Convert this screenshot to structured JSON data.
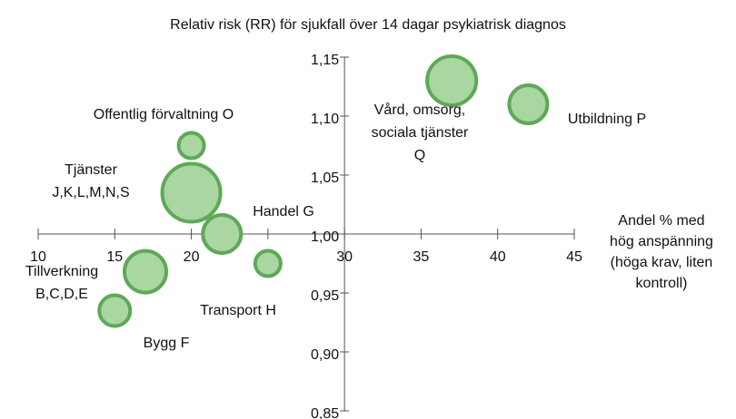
{
  "chart_data": {
    "type": "bubble",
    "title": "Relativ risk (RR) för sjukfall över 14 dagar psykiatrisk diagnos",
    "x_label": [
      "Andel % med",
      "hög anspänning",
      "(höga krav, liten",
      "kontroll)"
    ],
    "labels": [
      [
        "Offentlig förvaltning O"
      ],
      [
        "Tjänster",
        "J,K,L,M,N,S"
      ],
      [
        "Handel G"
      ],
      [
        "Transport H"
      ],
      [
        "Tillverkning",
        "B,C,D,E"
      ],
      [
        "Bygg F"
      ],
      [
        "Vård, omsorg,",
        "sociala tjänster",
        "Q"
      ],
      [
        "Utbildning P"
      ]
    ],
    "x": [
      20,
      20,
      22,
      25,
      17,
      15,
      37,
      42
    ],
    "values": [
      1.075,
      1.035,
      1.0,
      0.975,
      0.968,
      0.935,
      1.13,
      1.11
    ],
    "sizes": [
      14,
      32,
      21,
      14,
      23,
      17,
      27,
      21
    ],
    "color": "#a9d6a1",
    "edge_color": "#5ea957",
    "xlim": [
      10,
      45
    ],
    "xticks": [
      10,
      15,
      20,
      25,
      30,
      35,
      40,
      45
    ],
    "ylim": [
      0.85,
      1.15
    ],
    "yticks": [
      {
        "value": 0.85,
        "label": "0,85"
      },
      {
        "value": 0.9,
        "label": "0,90"
      },
      {
        "value": 0.95,
        "label": "0,95"
      },
      {
        "value": 1.0,
        "label": "1,00"
      },
      {
        "value": 1.05,
        "label": "1,05"
      },
      {
        "value": 1.1,
        "label": "1,10"
      },
      {
        "value": 1.15,
        "label": "1,15"
      }
    ],
    "x_axis_at": 1.0,
    "y_axis_at": 30
  }
}
